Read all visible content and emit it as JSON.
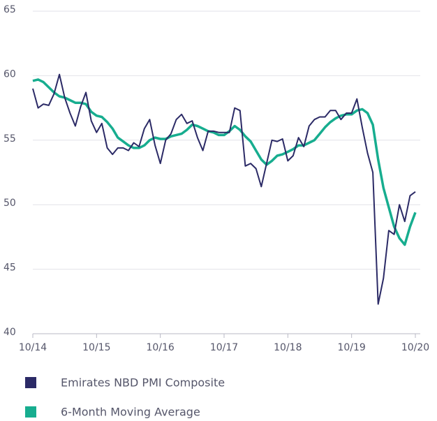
{
  "chart_data": {
    "type": "line",
    "categories": [
      "10/14",
      null,
      null,
      null,
      null,
      null,
      null,
      null,
      null,
      null,
      null,
      null,
      "10/15",
      null,
      null,
      null,
      null,
      null,
      null,
      null,
      null,
      null,
      null,
      null,
      "10/16",
      null,
      null,
      null,
      null,
      null,
      null,
      null,
      null,
      null,
      null,
      null,
      "10/17",
      null,
      null,
      null,
      null,
      null,
      null,
      null,
      null,
      null,
      null,
      null,
      "10/18",
      null,
      null,
      null,
      null,
      null,
      null,
      null,
      null,
      null,
      null,
      null,
      "10/19",
      null,
      null,
      null,
      null,
      null,
      null,
      null,
      null,
      null,
      null,
      null,
      "10/20"
    ],
    "series": [
      {
        "name": "Emirates NBD PMI Composite",
        "color": "#2b2a66",
        "values": [
          59.0,
          57.5,
          57.8,
          57.7,
          58.6,
          60.1,
          58.3,
          57.1,
          56.1,
          57.6,
          58.7,
          56.5,
          55.6,
          56.3,
          54.4,
          53.9,
          54.4,
          54.4,
          54.2,
          54.8,
          54.5,
          55.9,
          56.6,
          54.6,
          53.2,
          55.0,
          55.5,
          56.6,
          57.0,
          56.3,
          56.5,
          55.2,
          54.2,
          55.7,
          55.7,
          55.6,
          55.6,
          55.6,
          57.5,
          57.3,
          53.0,
          53.2,
          52.8,
          51.4,
          53.2,
          55.0,
          54.9,
          55.1,
          53.4,
          53.8,
          55.2,
          54.5,
          56.1,
          56.6,
          56.8,
          56.8,
          57.3,
          57.3,
          56.6,
          57.1,
          57.1,
          58.2,
          56.0,
          54.0,
          52.5,
          42.3,
          44.3,
          48.0,
          47.7,
          50.0,
          48.7,
          50.7,
          51.0
        ]
      },
      {
        "name": "6-Month Moving Average",
        "color": "#17ad8f",
        "values": [
          59.6,
          59.7,
          59.5,
          59.1,
          58.7,
          58.4,
          58.3,
          58.1,
          57.9,
          57.9,
          57.8,
          57.2,
          56.9,
          56.8,
          56.4,
          55.9,
          55.2,
          54.9,
          54.6,
          54.4,
          54.4,
          54.6,
          55.0,
          55.2,
          55.1,
          55.1,
          55.3,
          55.4,
          55.5,
          55.8,
          56.2,
          56.1,
          55.9,
          55.7,
          55.6,
          55.4,
          55.4,
          55.7,
          56.1,
          55.8,
          55.3,
          54.9,
          54.2,
          53.5,
          53.1,
          53.4,
          53.8,
          53.9,
          54.1,
          54.3,
          54.6,
          54.6,
          54.8,
          55.0,
          55.5,
          56.0,
          56.4,
          56.7,
          56.9,
          57.0,
          57.0,
          57.3,
          57.4,
          57.1,
          56.2,
          53.5,
          51.3,
          49.8,
          48.3,
          47.4,
          46.9,
          48.3,
          49.4
        ]
      }
    ],
    "ylim": [
      40,
      65
    ],
    "yticks": [
      40,
      45,
      50,
      55,
      60,
      65
    ],
    "grid": true
  }
}
